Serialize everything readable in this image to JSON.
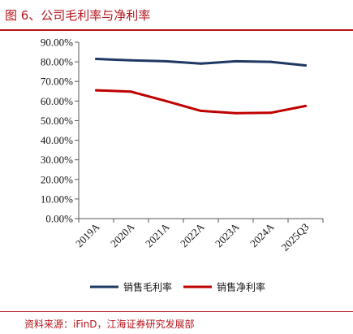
{
  "figure": {
    "title": "图 6、公司毛利率与净利率",
    "source": "资料来源：iFinD，江海证券研究发展部"
  },
  "chart_data": {
    "type": "line",
    "title": "",
    "xlabel": "",
    "ylabel": "",
    "categories": [
      "2019A",
      "2020A",
      "2021A",
      "2022A",
      "2023A",
      "2024A",
      "2025Q3"
    ],
    "y_ticks": [
      "0.00%",
      "10.00%",
      "20.00%",
      "30.00%",
      "40.00%",
      "50.00%",
      "60.00%",
      "70.00%",
      "80.00%",
      "90.00%"
    ],
    "ylim": [
      0,
      90
    ],
    "grid": false,
    "legend": "bottom",
    "series": [
      {
        "name": "销售毛利率",
        "color": "#1f3864",
        "values": [
          81.5,
          80.8,
          80.3,
          79.1,
          80.3,
          80.0,
          78.2
        ]
      },
      {
        "name": "销售净利率",
        "color": "#c00000",
        "values": [
          65.5,
          64.8,
          60.0,
          55.0,
          53.8,
          54.0,
          57.5
        ]
      }
    ]
  }
}
